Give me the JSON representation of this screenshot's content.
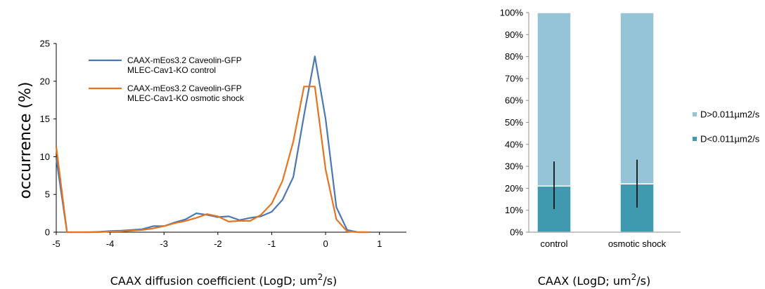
{
  "chart_data": [
    {
      "type": "line",
      "title": "",
      "xlabel": "CAAX diffusion coefficient (LogD; um",
      "xlabel_sup": "2",
      "xlabel_tail": "/s)",
      "ylabel": "occurrence (%)",
      "xlim": [
        -5,
        1.5
      ],
      "ylim": [
        0,
        25
      ],
      "x_ticks": [
        "-5",
        "-4",
        "-3",
        "-2",
        "-1",
        "0",
        "1"
      ],
      "y_ticks": [
        "0",
        "5",
        "10",
        "15",
        "20",
        "25"
      ],
      "grid": false,
      "legend_position": "top-left",
      "series": [
        {
          "name": [
            "CAAX-mEos3.2 Caveolin-GFP",
            "MLEC-Cav1-KO control"
          ],
          "color": "#4a78b5",
          "points": [
            [
              -5.0,
              9.8
            ],
            [
              -4.8,
              0.0
            ],
            [
              -4.6,
              0.0
            ],
            [
              -4.4,
              0.0
            ],
            [
              -4.2,
              0.05
            ],
            [
              -4.0,
              0.15
            ],
            [
              -3.8,
              0.2
            ],
            [
              -3.6,
              0.3
            ],
            [
              -3.4,
              0.4
            ],
            [
              -3.2,
              0.8
            ],
            [
              -3.0,
              0.8
            ],
            [
              -2.8,
              1.3
            ],
            [
              -2.6,
              1.7
            ],
            [
              -2.4,
              2.5
            ],
            [
              -2.2,
              2.3
            ],
            [
              -2.0,
              2.0
            ],
            [
              -1.8,
              2.1
            ],
            [
              -1.6,
              1.6
            ],
            [
              -1.4,
              1.9
            ],
            [
              -1.2,
              2.1
            ],
            [
              -1.0,
              2.7
            ],
            [
              -0.8,
              4.3
            ],
            [
              -0.6,
              7.3
            ],
            [
              -0.4,
              15.5
            ],
            [
              -0.2,
              23.3
            ],
            [
              0.0,
              15.0
            ],
            [
              0.2,
              3.3
            ],
            [
              0.4,
              0.3
            ],
            [
              0.6,
              0.0
            ],
            [
              0.8,
              0.0
            ]
          ]
        },
        {
          "name": [
            "CAAX-mEos3.2 Caveolin-GFP",
            "MLEC-Cav1-KO osmotic shock"
          ],
          "color": "#e57421",
          "points": [
            [
              -5.0,
              11.3
            ],
            [
              -4.8,
              0.0
            ],
            [
              -4.6,
              0.0
            ],
            [
              -4.4,
              0.0
            ],
            [
              -4.2,
              0.0
            ],
            [
              -4.0,
              0.1
            ],
            [
              -3.8,
              0.1
            ],
            [
              -3.6,
              0.2
            ],
            [
              -3.4,
              0.3
            ],
            [
              -3.2,
              0.5
            ],
            [
              -3.0,
              0.8
            ],
            [
              -2.8,
              1.2
            ],
            [
              -2.6,
              1.5
            ],
            [
              -2.4,
              1.9
            ],
            [
              -2.2,
              2.4
            ],
            [
              -2.0,
              2.1
            ],
            [
              -1.8,
              1.4
            ],
            [
              -1.6,
              1.5
            ],
            [
              -1.4,
              1.5
            ],
            [
              -1.2,
              2.3
            ],
            [
              -1.0,
              3.8
            ],
            [
              -0.8,
              6.8
            ],
            [
              -0.6,
              12.0
            ],
            [
              -0.4,
              19.3
            ],
            [
              -0.2,
              19.3
            ],
            [
              0.0,
              8.3
            ],
            [
              0.2,
              1.7
            ],
            [
              0.4,
              0.1
            ],
            [
              0.6,
              0.0
            ],
            [
              0.8,
              0.0
            ]
          ]
        }
      ]
    },
    {
      "type": "bar",
      "stacked": true,
      "title": "",
      "xlabel": "CAAX (LogD; um",
      "xlabel_sup": "2",
      "xlabel_tail": "/s)",
      "ylabel": "",
      "ylim": [
        0,
        100
      ],
      "y_ticks": [
        "0%",
        "10%",
        "20%",
        "30%",
        "40%",
        "50%",
        "60%",
        "70%",
        "80%",
        "90%",
        "100%"
      ],
      "categories": [
        "control",
        "osmotic shock"
      ],
      "grid": false,
      "legend_position": "right",
      "series": [
        {
          "name": "D<0.011µm2/s",
          "color": "#3f9ab0",
          "values": [
            21,
            22
          ],
          "error_low": [
            10.5,
            11.2
          ],
          "error_high": [
            32.2,
            33
          ]
        },
        {
          "name": "D>0.011µm2/s",
          "color": "#94c4d6",
          "values": [
            79,
            78
          ]
        }
      ]
    }
  ]
}
